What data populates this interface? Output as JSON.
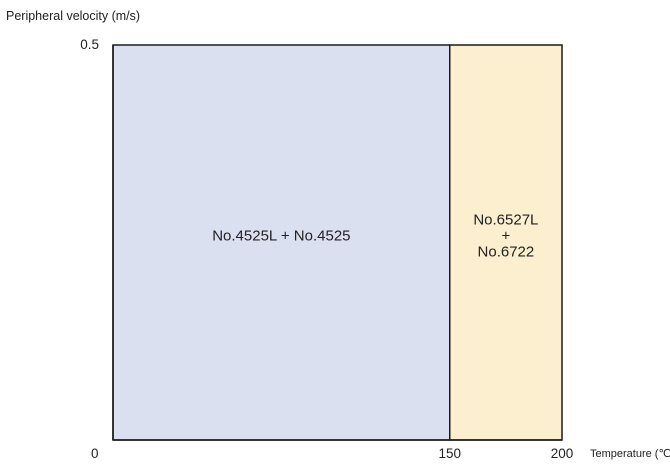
{
  "chart_data": {
    "type": "area",
    "title": "",
    "xlabel": "Temperature (℃)",
    "ylabel": "Peripheral velocity (m/s)",
    "xlim": [
      0,
      200
    ],
    "ylim": [
      0,
      0.5
    ],
    "x_ticks": [
      "0",
      "150",
      "200"
    ],
    "y_ticks": [
      "0.5"
    ],
    "grid": false,
    "regions": [
      {
        "label_lines": [
          "No.4525L + No.4525"
        ],
        "x_range": [
          0,
          150
        ],
        "y_range": [
          0,
          0.5
        ],
        "color": "#dbe0f1"
      },
      {
        "label_lines": [
          "No.6527L",
          "+",
          "No.6722"
        ],
        "x_range": [
          150,
          200
        ],
        "y_range": [
          0,
          0.5
        ],
        "color": "#fbefcf"
      }
    ]
  },
  "colors": {
    "axis": "#1a1a1a",
    "text": "#222222"
  }
}
